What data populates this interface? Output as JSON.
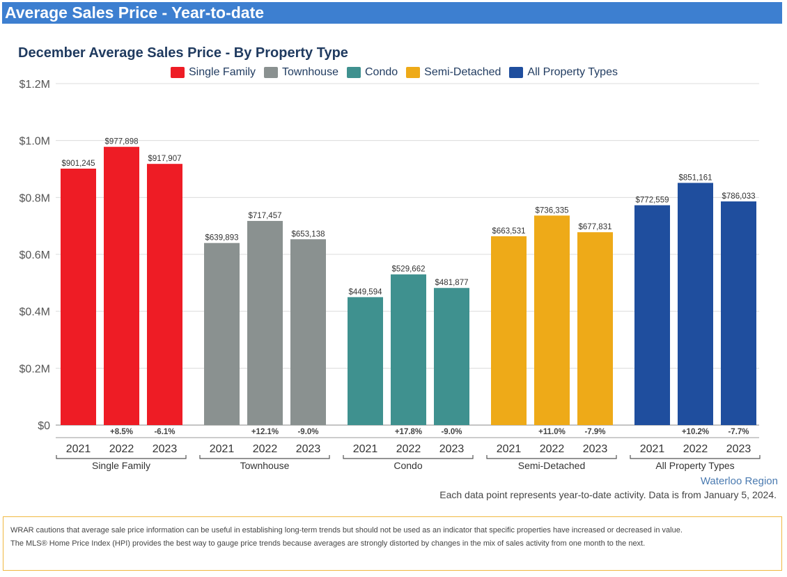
{
  "header": {
    "title": "Average Sales Price - Year-to-date"
  },
  "chart_data": {
    "type": "bar",
    "title": "December Average Sales Price - By Property Type",
    "groups": [
      "Single Family",
      "Townhouse",
      "Condo",
      "Semi-Detached",
      "All Property Types"
    ],
    "years": [
      "2021",
      "2022",
      "2023"
    ],
    "series": [
      {
        "name": "Single Family",
        "color": "#ee1c25",
        "values": [
          901245,
          977898,
          917907
        ],
        "value_labels": [
          "$901,245",
          "$977,898",
          "$917,907"
        ],
        "change_labels": [
          "",
          "+8.5%",
          "-6.1%"
        ]
      },
      {
        "name": "Townhouse",
        "color": "#8a9190",
        "values": [
          639893,
          717457,
          653138
        ],
        "value_labels": [
          "$639,893",
          "$717,457",
          "$653,138"
        ],
        "change_labels": [
          "",
          "+12.1%",
          "-9.0%"
        ]
      },
      {
        "name": "Condo",
        "color": "#3f918f",
        "values": [
          449594,
          529662,
          481877
        ],
        "value_labels": [
          "$449,594",
          "$529,662",
          "$481,877"
        ],
        "change_labels": [
          "",
          "+17.8%",
          "-9.0%"
        ]
      },
      {
        "name": "Semi-Detached",
        "color": "#eeaa18",
        "values": [
          663531,
          736335,
          677831
        ],
        "value_labels": [
          "$663,531",
          "$736,335",
          "$677,831"
        ],
        "change_labels": [
          "",
          "+11.0%",
          "-7.9%"
        ]
      },
      {
        "name": "All Property Types",
        "color": "#1f4e9e",
        "values": [
          772559,
          851161,
          786033
        ],
        "value_labels": [
          "$772,559",
          "$851,161",
          "$786,033"
        ],
        "change_labels": [
          "",
          "+10.2%",
          "-7.7%"
        ]
      }
    ],
    "ylim": [
      0,
      1200000
    ],
    "yticks": [
      0,
      200000,
      400000,
      600000,
      800000,
      1000000,
      1200000
    ],
    "ytick_labels": [
      "$0",
      "$0.2M",
      "$0.4M",
      "$0.6M",
      "$0.8M",
      "$1.0M",
      "$1.2M"
    ],
    "legend_position": "top-center",
    "grid": true
  },
  "footer": {
    "region": "Waterloo Region",
    "note": "Each data point represents year-to-date activity. Data is from January 5, 2024."
  },
  "disclaimer": {
    "line1": "WRAR cautions that average sale price information can be useful in establishing long-term trends but should not be used as an indicator that specific properties have increased or decreased in value.",
    "line2": "The MLS® Home Price Index (HPI) provides the best way to gauge price trends because averages are strongly distorted by changes in the mix of sales activity from one month to the next."
  }
}
